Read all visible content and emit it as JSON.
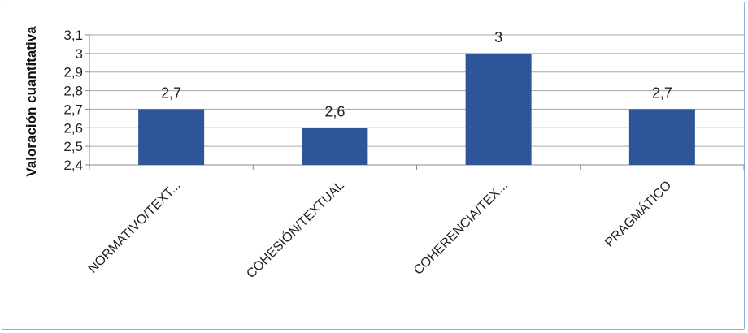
{
  "chart_data": {
    "type": "bar",
    "title": "",
    "xlabel": "",
    "ylabel": "Valoración cuantitativa",
    "categories": [
      "NORMATIVO/TEXT...",
      "COHESIÓN/TEXTUAL",
      "COHERENCIA/TEX...",
      "PRAGMÁTICO"
    ],
    "values": [
      2.7,
      2.6,
      3,
      2.7
    ],
    "data_labels": [
      "2,7",
      "2,6",
      "3",
      "2,7"
    ],
    "ylim": [
      2.4,
      3.1
    ],
    "yticks": [
      2.4,
      2.5,
      2.6,
      2.7,
      2.8,
      2.9,
      3,
      3.1
    ],
    "ytick_labels": [
      "2,4",
      "2,5",
      "2,6",
      "2,7",
      "2,8",
      "2,9",
      "3",
      "3,1"
    ],
    "grid": true,
    "legend": "none",
    "bar_color": "#2e5597",
    "gridline_color": "#a6a6a6",
    "border_color": "#86b6df"
  }
}
